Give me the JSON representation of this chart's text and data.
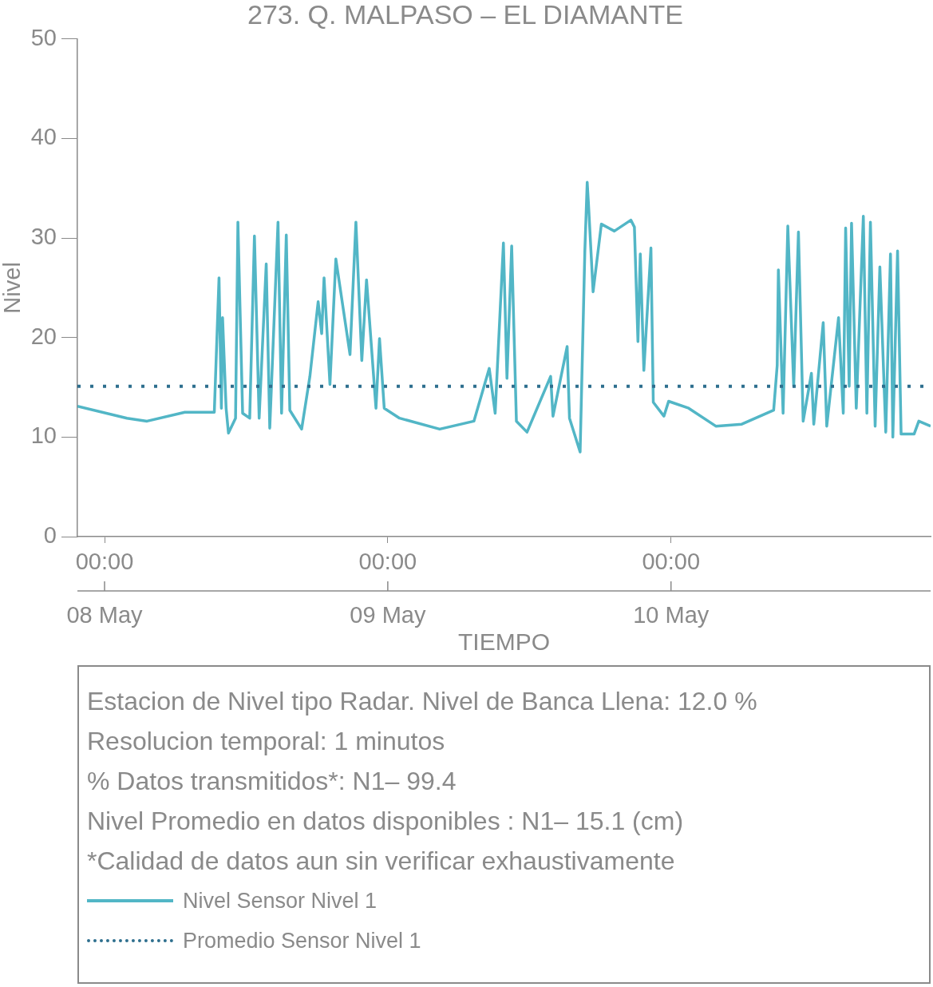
{
  "chart_data": {
    "type": "line",
    "title": "273. Q. MALPASO – EL DIAMANTE",
    "xlabel": "TIEMPO",
    "ylabel": "Nivel",
    "xlim": [
      "--05-07T21:42",
      "--05-10T22:00"
    ],
    "xticks": [
      {
        "value": "--05-08T00:00",
        "label": "00:00\n08 May"
      },
      {
        "value": "--05-09T00:00",
        "label": "00:00\n09 May"
      },
      {
        "value": "--05-10T00:00",
        "label": "00:00\n10 May"
      }
    ],
    "ylim": [
      0,
      50
    ],
    "yticks": [
      0,
      10,
      20,
      30,
      40,
      50
    ],
    "grid": false,
    "legend": "bottom",
    "marker": "none",
    "line_style": "solid",
    "series": [
      {
        "name": "Nivel Sensor Nivel 1",
        "color": "#52b6c6",
        "x": [
          "--05-07T21:42",
          "--05-08T01:54",
          "--05-08T03:36",
          "--05-08T06:48",
          "--05-08T09:18",
          "--05-08T09:42",
          "--05-08T09:54",
          "--05-08T10:00",
          "--05-08T10:18",
          "--05-08T10:30",
          "--05-08T11:06",
          "--05-08T11:18",
          "--05-08T11:42",
          "--05-08T12:18",
          "--05-08T12:42",
          "--05-08T13:06",
          "--05-08T13:42",
          "--05-08T14:00",
          "--05-08T14:42",
          "--05-08T15:00",
          "--05-08T15:24",
          "--05-08T15:42",
          "--05-08T16:42",
          "--05-08T17:24",
          "--05-08T18:06",
          "--05-08T18:24",
          "--05-08T18:36",
          "--05-08T19:06",
          "--05-08T19:36",
          "--05-08T20:48",
          "--05-08T21:18",
          "--05-08T21:48",
          "--05-08T22:12",
          "--05-08T23:00",
          "--05-08T23:18",
          "--05-08T23:42",
          "--05-09T01:00",
          "--05-09T04:24",
          "--05-09T07:18",
          "--05-09T08:36",
          "--05-09T09:06",
          "--05-09T09:48",
          "--05-09T10:06",
          "--05-09T10:30",
          "--05-09T10:54",
          "--05-09T11:48",
          "--05-09T13:48",
          "--05-09T14:00",
          "--05-09T15:12",
          "--05-09T15:24",
          "--05-09T16:18",
          "--05-09T16:42",
          "--05-09T16:54",
          "--05-09T17:00",
          "--05-09T17:24",
          "--05-09T18:06",
          "--05-09T19:12",
          "--05-09T20:36",
          "--05-09T20:54",
          "--05-09T21:12",
          "--05-09T21:24",
          "--05-09T21:42",
          "--05-09T22:18",
          "--05-09T22:30",
          "--05-09T23:24",
          "--05-09T23:48",
          "--05-10T01:30",
          "--05-10T03:48",
          "--05-10T06:00",
          "--05-10T08:42",
          "--05-10T09:00",
          "--05-10T09:06",
          "--05-10T09:30",
          "--05-10T09:54",
          "--05-10T10:24",
          "--05-10T10:48",
          "--05-10T11:12",
          "--05-10T11:54",
          "--05-10T12:06",
          "--05-10T12:54",
          "--05-10T13:12",
          "--05-10T14:12",
          "--05-10T14:36",
          "--05-10T14:48",
          "--05-10T15:06",
          "--05-10T15:18",
          "--05-10T15:42",
          "--05-10T16:18",
          "--05-10T16:36",
          "--05-10T16:54",
          "--05-10T17:18",
          "--05-10T17:42",
          "--05-10T18:12",
          "--05-10T18:36",
          "--05-10T18:48",
          "--05-10T19:12",
          "--05-10T19:30",
          "--05-10T20:36",
          "--05-10T21:00",
          "--05-10T22:00"
        ],
        "values": [
          13.1,
          11.9,
          11.6,
          12.5,
          12.5,
          26.0,
          12.9,
          22.0,
          12.9,
          10.4,
          11.9,
          31.6,
          12.4,
          11.9,
          30.2,
          11.9,
          27.4,
          10.9,
          31.6,
          12.4,
          30.3,
          12.7,
          10.8,
          16.1,
          23.6,
          20.4,
          26.0,
          15.3,
          27.9,
          18.3,
          31.6,
          17.7,
          25.8,
          12.9,
          19.9,
          12.9,
          11.9,
          10.8,
          11.6,
          16.9,
          12.4,
          29.5,
          15.9,
          29.2,
          11.6,
          10.5,
          16.1,
          12.1,
          19.1,
          11.9,
          8.5,
          28.7,
          35.6,
          33.6,
          24.6,
          31.4,
          30.7,
          31.8,
          31.1,
          19.6,
          28.4,
          16.7,
          29.0,
          13.5,
          12.1,
          13.6,
          12.9,
          11.1,
          11.3,
          12.7,
          17.2,
          26.8,
          12.4,
          31.2,
          15.1,
          30.6,
          11.6,
          16.4,
          11.3,
          21.5,
          11.1,
          22.0,
          12.4,
          31.0,
          15.1,
          31.5,
          12.9,
          32.2,
          12.4,
          31.6,
          11.1,
          27.1,
          10.5,
          28.4,
          10.0,
          28.7,
          10.3,
          10.3,
          11.6,
          11.1
        ]
      }
    ],
    "ref_lines": [
      {
        "axis": "y",
        "value": 15.1,
        "label": "Promedio Sensor Nivel 1",
        "color": "#2e6f8e",
        "line_style": "dotted"
      }
    ],
    "annotations": [
      "Estacion de Nivel tipo Radar. Nivel de Banca Llena: 12.0 %",
      "Resolucion temporal: 1 minutos",
      "% Datos transmitidos*: N1– 99.4",
      "Nivel Promedio en datos disponibles : N1– 15.1 (cm)",
      "*Calidad de datos aun sin verificar exhaustivamente"
    ]
  }
}
